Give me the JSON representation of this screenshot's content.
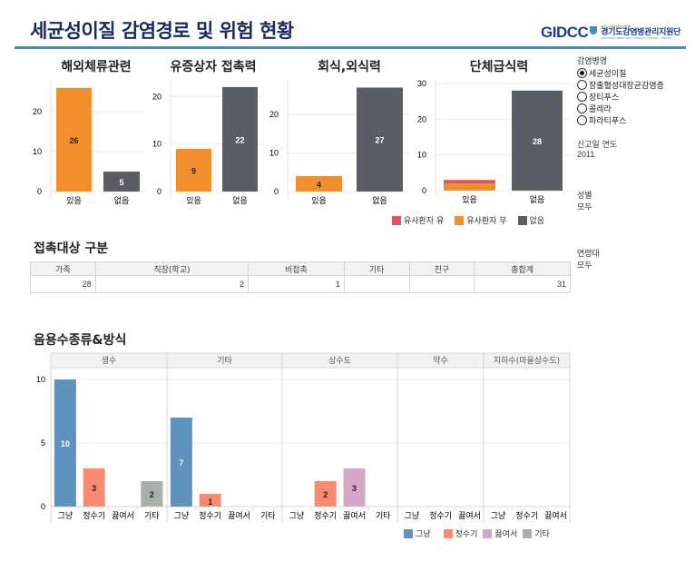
{
  "header": {
    "title": "세균성이질 감염경로 및 위험 현황",
    "logo": {
      "brand": "GIDCC",
      "org_small": "분당서울대학교병원",
      "org_name": "경기도감염병관리지원단",
      "org_english": "GYEONGGI INFECTIOUS DISEASE CONTROL CENTER"
    }
  },
  "colors": {
    "orange": "#f28e2b",
    "dark_gray": "#5a5d63",
    "red": "#e15759",
    "blue": "#5f93bd",
    "salmon": "#fb8b70",
    "pink": "#d4a6c8",
    "gray_green": "#a8b0aa",
    "title_rule": "#3a8fcc"
  },
  "filters": {
    "disease": {
      "label": "감염병명",
      "options": [
        "세균성이질",
        "장출혈성대장균감염증",
        "장티푸스",
        "콜레라",
        "파라티푸스"
      ],
      "selected": "세균성이질"
    },
    "year": {
      "label": "신고일 연도",
      "value": "2011"
    },
    "sex": {
      "label": "성별",
      "value": "모두"
    },
    "age": {
      "label": "연령대",
      "value": "모두"
    }
  },
  "top_legend": [
    {
      "label": "유사환자 유",
      "color": "#e15759"
    },
    {
      "label": "유사환자 무",
      "color": "#f28e2b"
    },
    {
      "label": "없음",
      "color": "#5a5d63"
    }
  ],
  "chart_data": [
    {
      "type": "bar",
      "title": "해외체류관련",
      "categories": [
        "있음",
        "없음"
      ],
      "series": [
        {
          "name": "유사환자 유",
          "values": [
            0,
            0
          ]
        },
        {
          "name": "유사환자 무",
          "values": [
            26,
            0
          ]
        },
        {
          "name": "없음",
          "values": [
            0,
            5
          ]
        }
      ],
      "totals": [
        26,
        5
      ],
      "yticks": [
        0,
        10,
        20
      ],
      "ylim": [
        0,
        28
      ]
    },
    {
      "type": "bar",
      "title": "유증상자 접촉력",
      "categories": [
        "있음",
        "없음"
      ],
      "series": [
        {
          "name": "유사환자 유",
          "values": [
            0,
            0
          ]
        },
        {
          "name": "유사환자 무",
          "values": [
            9,
            0
          ]
        },
        {
          "name": "없음",
          "values": [
            0,
            22
          ]
        }
      ],
      "totals": [
        9,
        22
      ],
      "yticks": [
        0,
        10,
        20
      ],
      "ylim": [
        0,
        23.5
      ]
    },
    {
      "type": "bar",
      "title": "회식,외식력",
      "categories": [
        "있음",
        "없음"
      ],
      "series": [
        {
          "name": "유사환자 유",
          "values": [
            0,
            0
          ]
        },
        {
          "name": "유사환자 무",
          "values": [
            4,
            0
          ]
        },
        {
          "name": "없음",
          "values": [
            0,
            27
          ]
        }
      ],
      "totals": [
        4,
        27
      ],
      "yticks": [
        0,
        10,
        20
      ],
      "ylim": [
        0,
        29
      ]
    },
    {
      "type": "bar",
      "title": "단체급식력",
      "categories": [
        "있음",
        "없음"
      ],
      "series": [
        {
          "name": "유사환자 유",
          "values": [
            1,
            0
          ]
        },
        {
          "name": "유사환자 무",
          "values": [
            2,
            0
          ]
        },
        {
          "name": "없음",
          "values": [
            0,
            28
          ]
        }
      ],
      "totals": [
        3,
        28
      ],
      "show_labels": [
        false,
        true
      ],
      "yticks": [
        0,
        10,
        20,
        30
      ],
      "ylim": [
        0,
        31
      ]
    },
    {
      "type": "bar",
      "title": "음용수종류&방식",
      "panels": [
        {
          "name": "생수",
          "categories": [
            "그냥",
            "정수기",
            "끓여서",
            "기타"
          ],
          "values": [
            10,
            3,
            0,
            2
          ]
        },
        {
          "name": "기타",
          "categories": [
            "그냥",
            "정수기",
            "끓여서",
            "기타"
          ],
          "values": [
            7,
            1,
            0,
            0
          ]
        },
        {
          "name": "상수도",
          "categories": [
            "그냥",
            "정수기",
            "끓여서",
            "기타"
          ],
          "values": [
            0,
            2,
            3,
            0
          ]
        },
        {
          "name": "약수",
          "categories": [
            "그냥",
            "정수기",
            "끓여서"
          ],
          "values": [
            0,
            0,
            0
          ]
        },
        {
          "name": "지하수(마을상수도)",
          "categories": [
            "그냥",
            "정수기",
            "끓여서"
          ],
          "values": [
            0,
            0,
            0
          ]
        }
      ],
      "legend": [
        {
          "label": "그냥",
          "color": "#5f93bd"
        },
        {
          "label": "정수기",
          "color": "#fb8b70"
        },
        {
          "label": "끓여서",
          "color": "#d4a6c8"
        },
        {
          "label": "기타",
          "color": "#a8b0aa"
        }
      ],
      "yticks": [
        0,
        5,
        10
      ],
      "ylim": [
        0,
        10.5
      ]
    }
  ],
  "contact_table": {
    "title": "접촉대상 구분",
    "columns": [
      "가족",
      "직장(학교)",
      "비접촉",
      "기타",
      "친구",
      "총합계"
    ],
    "rows": [
      [
        "28",
        "2",
        "1",
        "",
        "",
        "31"
      ]
    ]
  }
}
